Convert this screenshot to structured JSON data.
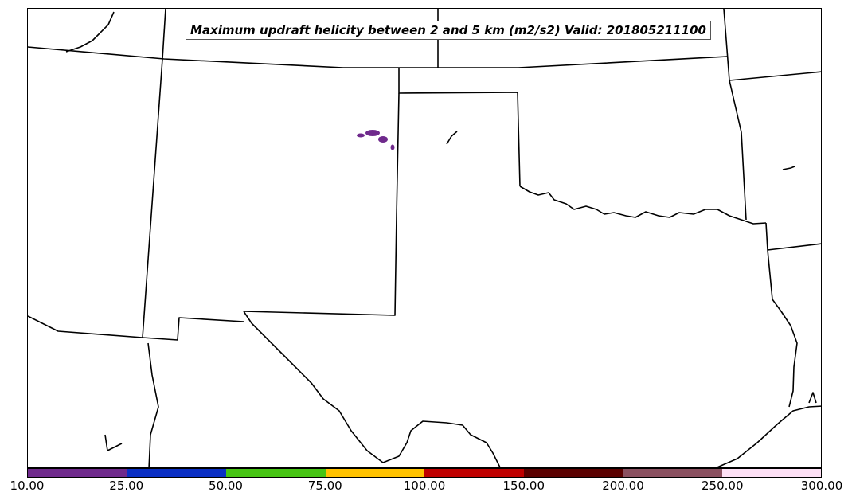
{
  "title": "Maximum updraft helicity between 2 and 5 km (m2/s2) Valid: 201805211100",
  "colorbar": {
    "ticks": [
      "10.00",
      "25.00",
      "50.00",
      "75.00",
      "100.00",
      "150.00",
      "200.00",
      "250.00",
      "300.00"
    ],
    "colors": [
      "#6f2a8c",
      "#0a2fc4",
      "#46c413",
      "#ffc200",
      "#bf0000",
      "#5a0000",
      "#8a5060",
      "#fde0f5"
    ]
  },
  "map": {
    "region": "Southern Plains (Texas, Oklahoma, New Mexico, Kansas, Colorado)",
    "border_color": "#000000",
    "helicity_cell_color": "#6f2a8c"
  }
}
